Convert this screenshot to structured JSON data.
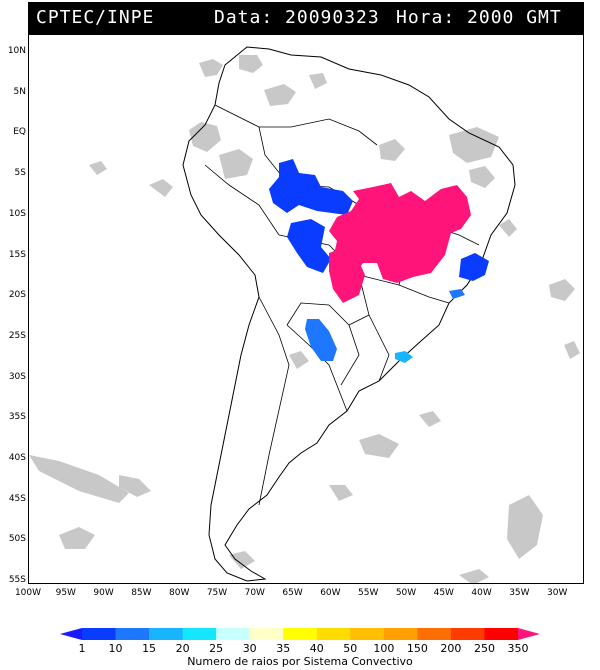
{
  "header": {
    "source": "CPTEC/INPE",
    "date_text": "Data: 20090323",
    "time_text": "Hora: 2000 GMT"
  },
  "map": {
    "lat_ticks": [
      "10N",
      "5N",
      "EQ",
      "5S",
      "10S",
      "15S",
      "20S",
      "25S",
      "30S",
      "35S",
      "40S",
      "45S",
      "50S",
      "55S"
    ],
    "lon_ticks": [
      "100W",
      "95W",
      "90W",
      "85W",
      "80W",
      "75W",
      "70W",
      "65W",
      "60W",
      "55W",
      "50W",
      "45W",
      "40W",
      "35W",
      "30W"
    ],
    "lat_range": [
      -56,
      12.5
    ],
    "lon_range": [
      -100,
      -27
    ]
  },
  "colorbar": {
    "title": "Numero de raios por Sistema Convectivo",
    "labels": [
      "1",
      "10",
      "15",
      "20",
      "25",
      "30",
      "35",
      "40",
      "50",
      "100",
      "150",
      "200",
      "250",
      "350"
    ],
    "colors": [
      "#1a1aff",
      "#0a3cff",
      "#1e78ff",
      "#19b4ff",
      "#14e6ff",
      "#c8ffff",
      "#ffffc8",
      "#ffff00",
      "#ffdc00",
      "#ffbe00",
      "#ffa000",
      "#ff6e00",
      "#ff3c00",
      "#ff0000",
      "#ff147a"
    ]
  }
}
